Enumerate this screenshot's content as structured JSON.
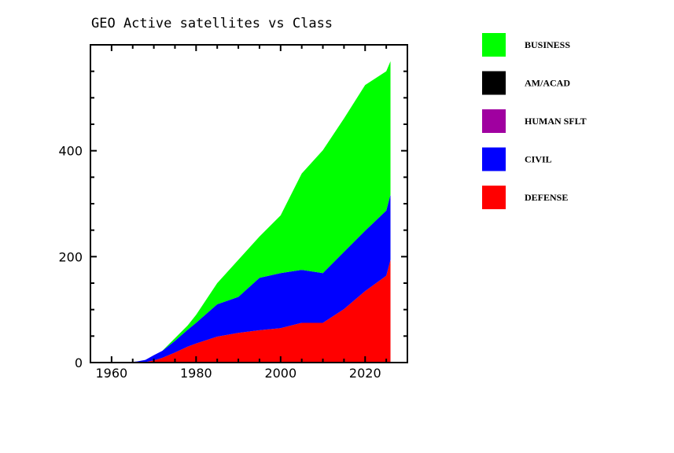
{
  "chart_data": {
    "type": "area",
    "stacked": true,
    "title": "GEO Active satellites vs Class",
    "xlabel": "",
    "ylabel": "",
    "xlim": [
      1955,
      2030
    ],
    "ylim": [
      0,
      600
    ],
    "x_ticks": [
      1960,
      1980,
      2000,
      2020
    ],
    "y_ticks": [
      0,
      200,
      400
    ],
    "x_minor_step": 5,
    "y_minor_step": 50,
    "grid": false,
    "legend_position": "right",
    "x": [
      1958,
      1963,
      1966,
      1968,
      1970,
      1972,
      1975,
      1978,
      1980,
      1985,
      1990,
      1995,
      2000,
      2005,
      2010,
      2015,
      2020,
      2025,
      2026
    ],
    "series": [
      {
        "name": "DEFENSE",
        "color": "#ff0000",
        "values": [
          0,
          0,
          0,
          1,
          4,
          9,
          19,
          30,
          36,
          49,
          56,
          61,
          65,
          75,
          75,
          101,
          135,
          164,
          194
        ]
      },
      {
        "name": "CIVIL",
        "color": "#0000ff",
        "values": [
          0,
          0,
          2,
          4,
          10,
          13,
          22,
          32,
          39,
          61,
          68,
          99,
          104,
          100,
          94,
          108,
          114,
          123,
          123
        ]
      },
      {
        "name": "HUMAN SFLT",
        "color": "#a000a0",
        "values": [
          0,
          0,
          0,
          0,
          0,
          0,
          0,
          0,
          0,
          0,
          0,
          0,
          0,
          0,
          0,
          0,
          0,
          0,
          0
        ]
      },
      {
        "name": "AM/ACAD",
        "color": "#000000",
        "values": [
          0,
          0,
          0,
          0,
          0,
          0,
          0,
          0,
          0,
          0,
          0,
          0,
          0,
          0,
          0,
          0,
          0,
          0,
          0
        ]
      },
      {
        "name": "BUSINESS",
        "color": "#00ff00",
        "values": [
          0,
          0,
          0,
          0,
          0,
          0,
          5,
          8,
          15,
          40,
          70,
          78,
          109,
          182,
          232,
          252,
          275,
          263,
          252
        ]
      }
    ],
    "legend_order": [
      "BUSINESS",
      "AM/ACAD",
      "HUMAN SFLT",
      "CIVIL",
      "DEFENSE"
    ]
  }
}
